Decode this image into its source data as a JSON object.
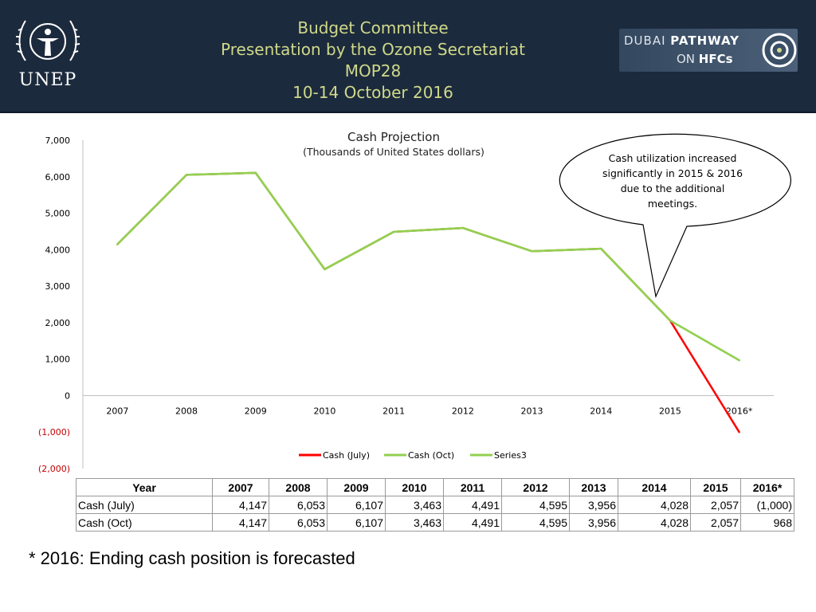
{
  "header": {
    "title_lines": [
      "Budget Committee",
      "Presentation by the Ozone Secretariat",
      "MOP28",
      "10-14 October 2016"
    ],
    "left_logo_text": "UNEP",
    "right_logo_line1_a": "DUBAI ",
    "right_logo_line1_b": "PATHWAY",
    "right_logo_line2_a": "ON ",
    "right_logo_line2_b": "HFCs"
  },
  "chart_data": {
    "type": "line",
    "title": "Cash Projection",
    "subtitle": "(Thousands of United States dollars)",
    "categories": [
      "2007",
      "2008",
      "2009",
      "2010",
      "2011",
      "2012",
      "2013",
      "2014",
      "2015",
      "2016*"
    ],
    "series": [
      {
        "name": "Cash (July)",
        "values": [
          4147,
          6053,
          6107,
          3463,
          4491,
          4595,
          3956,
          4028,
          2057,
          -1000
        ],
        "color": "#ff0000"
      },
      {
        "name": "Cash (Oct)",
        "values": [
          4147,
          6053,
          6107,
          3463,
          4491,
          4595,
          3956,
          4028,
          2057,
          968
        ],
        "color": "#92d050"
      },
      {
        "name": "Series3",
        "values": [
          4147,
          6053,
          6107,
          3463,
          4491,
          4595,
          3956,
          4028,
          2057,
          968
        ],
        "color": "#92d050"
      }
    ],
    "ylim": [
      -2000,
      7000
    ],
    "y_ticks": [
      7000,
      6000,
      5000,
      4000,
      3000,
      2000,
      1000,
      0,
      -1000,
      -2000
    ],
    "y_tick_labels": [
      "7,000",
      "6,000",
      "5,000",
      "4,000",
      "3,000",
      "2,000",
      "1,000",
      "0",
      "(1,000)",
      "(2,000)"
    ],
    "legend_position": "bottom",
    "grid": false,
    "annotation": "Cash utilization increased significantly in 2015 & 2016 due to the additional meetings."
  },
  "table": {
    "headers": [
      "Year",
      "2007",
      "2008",
      "2009",
      "2010",
      "2011",
      "2012",
      "2013",
      "2014",
      "2015",
      "2016*"
    ],
    "rows": [
      [
        "Cash (July)",
        "4,147",
        "6,053",
        "6,107",
        "3,463",
        "4,491",
        "4,595",
        "3,956",
        "4,028",
        "2,057",
        "(1,000)"
      ],
      [
        "Cash (Oct)",
        "4,147",
        "6,053",
        "6,107",
        "3,463",
        "4,491",
        "4,595",
        "3,956",
        "4,028",
        "2,057",
        "968"
      ]
    ]
  },
  "footnote": "* 2016: Ending cash position is forecasted"
}
